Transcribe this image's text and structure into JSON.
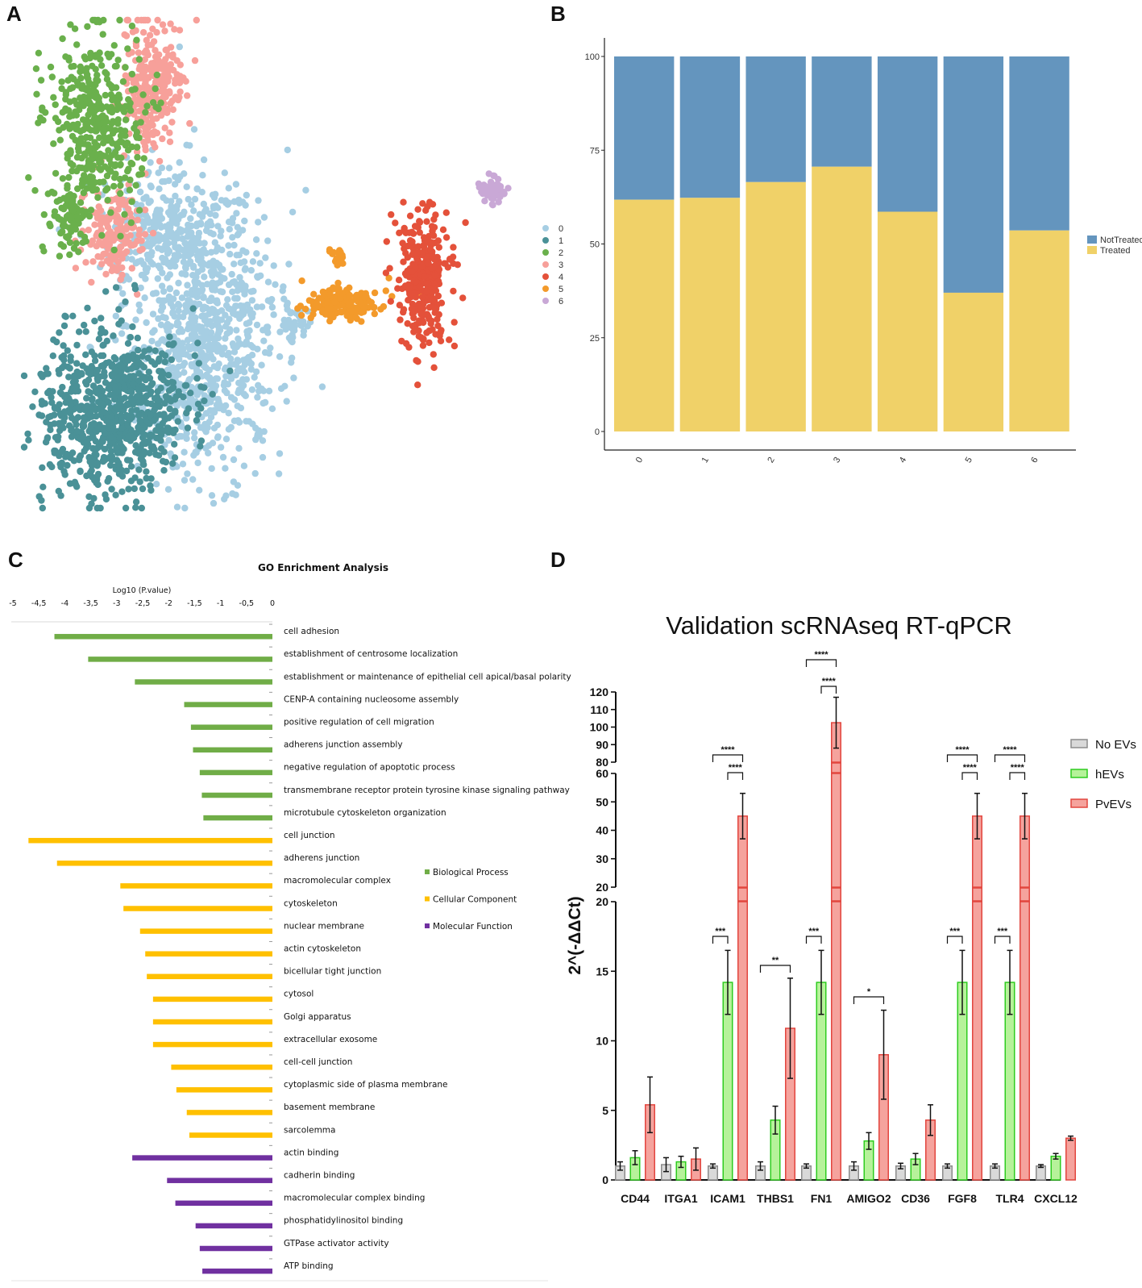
{
  "panels": {
    "a": {
      "label": "A"
    },
    "b": {
      "label": "B"
    },
    "c": {
      "label": "C"
    },
    "d": {
      "label": "D"
    }
  },
  "chart_data": [
    {
      "panel": "A",
      "type": "scatter",
      "title": "",
      "legend": [
        "0",
        "1",
        "2",
        "3",
        "4",
        "5",
        "6"
      ],
      "colors": [
        "#a6cee3",
        "#4a9197",
        "#6ab04c",
        "#f7a09a",
        "#e4513a",
        "#f39a2b",
        "#c9a8d6"
      ],
      "note": "UMAP of 7 clusters"
    },
    {
      "panel": "B",
      "type": "bar",
      "stacked": true,
      "categories": [
        "0",
        "1",
        "2",
        "3",
        "4",
        "5",
        "6"
      ],
      "series": [
        {
          "name": "Treated",
          "color": "#f0d168",
          "values": [
            61.8,
            62.3,
            66.5,
            70.6,
            58.6,
            37.0,
            53.6
          ]
        },
        {
          "name": "NotTreated",
          "color": "#6495be",
          "values": [
            38.2,
            37.7,
            33.5,
            29.4,
            41.4,
            63.0,
            46.4
          ]
        }
      ],
      "yticks": [
        "0",
        "25",
        "50",
        "75",
        "100"
      ],
      "ylim": [
        0,
        100
      ],
      "legend_labels": [
        "NotTreated",
        "Treated"
      ]
    },
    {
      "panel": "C",
      "type": "bar",
      "orientation": "horizontal",
      "title": "GO Enrichment Analysis",
      "xlabel": "Log10 (P.value)",
      "xticks": [
        "-5",
        "-4,5",
        "-4",
        "-3,5",
        "-3",
        "-2,5",
        "-2",
        "-1,5",
        "-1",
        "-0,5",
        "0"
      ],
      "xlim": [
        -5,
        0
      ],
      "legend": [
        {
          "name": "Biological Process",
          "color": "#70ad47"
        },
        {
          "name": "Cellular Component",
          "color": "#ffc000"
        },
        {
          "name": "Molecular Function",
          "color": "#7030a0"
        }
      ],
      "terms": [
        {
          "term": "cell adhesion",
          "value": -4.2,
          "group": 0
        },
        {
          "term": "establishment of centrosome localization",
          "value": -3.55,
          "group": 0
        },
        {
          "term": "establishment or maintenance of epithelial cell apical/basal polarity",
          "value": -2.65,
          "group": 0
        },
        {
          "term": "CENP-A containing nucleosome assembly",
          "value": -1.7,
          "group": 0
        },
        {
          "term": "positive regulation of cell migration",
          "value": -1.57,
          "group": 0
        },
        {
          "term": "adherens junction assembly",
          "value": -1.53,
          "group": 0
        },
        {
          "term": "negative regulation of apoptotic process",
          "value": -1.4,
          "group": 0
        },
        {
          "term": "transmembrane receptor protein tyrosine kinase signaling pathway",
          "value": -1.36,
          "group": 0
        },
        {
          "term": "microtubule cytoskeleton organization",
          "value": -1.33,
          "group": 0
        },
        {
          "term": "cell junction",
          "value": -4.7,
          "group": 1
        },
        {
          "term": "adherens junction",
          "value": -4.15,
          "group": 1
        },
        {
          "term": "macromolecular complex",
          "value": -2.93,
          "group": 1
        },
        {
          "term": "cytoskeleton",
          "value": -2.87,
          "group": 1
        },
        {
          "term": "nuclear membrane",
          "value": -2.55,
          "group": 1
        },
        {
          "term": "actin cytoskeleton",
          "value": -2.45,
          "group": 1
        },
        {
          "term": "bicellular tight junction",
          "value": -2.42,
          "group": 1
        },
        {
          "term": "cytosol",
          "value": -2.3,
          "group": 1
        },
        {
          "term": "Golgi apparatus",
          "value": -2.3,
          "group": 1
        },
        {
          "term": "extracellular exosome",
          "value": -2.3,
          "group": 1
        },
        {
          "term": "cell-cell junction",
          "value": -1.95,
          "group": 1
        },
        {
          "term": "cytoplasmic side of plasma membrane",
          "value": -1.85,
          "group": 1
        },
        {
          "term": "basement membrane",
          "value": -1.65,
          "group": 1
        },
        {
          "term": "sarcolemma",
          "value": -1.6,
          "group": 1
        },
        {
          "term": "actin binding",
          "value": -2.7,
          "group": 2
        },
        {
          "term": "cadherin binding",
          "value": -2.03,
          "group": 2
        },
        {
          "term": "macromolecular complex binding",
          "value": -1.87,
          "group": 2
        },
        {
          "term": "phosphatidylinositol binding",
          "value": -1.48,
          "group": 2
        },
        {
          "term": "GTPase activator activity",
          "value": -1.4,
          "group": 2
        },
        {
          "term": "ATP binding",
          "value": -1.35,
          "group": 2
        }
      ]
    },
    {
      "panel": "D",
      "type": "bar",
      "title": "Validation scRNAseq RT-qPCR",
      "ylabel": "2^(-ΔΔCt)",
      "y_segments": [
        {
          "range": [
            0,
            20
          ],
          "ticks": [
            "0",
            "5",
            "10",
            "15",
            "20"
          ]
        },
        {
          "range": [
            20,
            60
          ],
          "ticks": [
            "20",
            "30",
            "40",
            "50",
            "60"
          ]
        },
        {
          "range": [
            80,
            120
          ],
          "ticks": [
            "80",
            "90",
            "100",
            "110",
            "120"
          ]
        }
      ],
      "categories": [
        "CD44",
        "ITGA1",
        "ICAM1",
        "THBS1",
        "FN1",
        "AMIGO2",
        "CD36",
        "FGF8",
        "TLR4",
        "CXCL12"
      ],
      "series": [
        {
          "name": "No EVs",
          "fill": "#d9d9d9",
          "stroke": "#8c8c8c",
          "values": [
            1.0,
            1.1,
            1.0,
            1.0,
            1.0,
            1.0,
            1.0,
            1.0,
            1.0,
            1.0
          ],
          "errors": [
            0.3,
            0.5,
            0.15,
            0.3,
            0.15,
            0.3,
            0.2,
            0.15,
            0.15,
            0.1
          ]
        },
        {
          "name": "hEVs",
          "fill": "#b6f29a",
          "stroke": "#2ecc1f",
          "values": [
            1.6,
            1.3,
            14.2,
            4.3,
            14.2,
            2.8,
            1.5,
            14.2,
            14.2,
            1.7
          ],
          "errors": [
            0.5,
            0.4,
            2.3,
            1.0,
            2.3,
            0.6,
            0.4,
            2.3,
            2.3,
            0.2
          ]
        },
        {
          "name": "PvEVs",
          "fill": "#f5a39d",
          "stroke": "#e2463f",
          "values": [
            5.4,
            1.5,
            45,
            10.9,
            102.5,
            9.0,
            4.3,
            45,
            45,
            3.0
          ],
          "errors": [
            2.0,
            0.8,
            8,
            3.6,
            14.5,
            3.2,
            1.1,
            8,
            8,
            0.15
          ]
        }
      ],
      "significance": [
        {
          "category": "ICAM1",
          "pair": [
            "No EVs",
            "hEVs"
          ],
          "label": "***"
        },
        {
          "category": "ICAM1",
          "pair": [
            "hEVs",
            "PvEVs"
          ],
          "label": "****"
        },
        {
          "category": "ICAM1",
          "pair": [
            "No EVs",
            "PvEVs"
          ],
          "label": "****"
        },
        {
          "category": "THBS1",
          "pair": [
            "No EVs",
            "PvEVs"
          ],
          "label": "**"
        },
        {
          "category": "FN1",
          "pair": [
            "No EVs",
            "hEVs"
          ],
          "label": "***"
        },
        {
          "category": "FN1",
          "pair": [
            "hEVs",
            "PvEVs"
          ],
          "label": "****"
        },
        {
          "category": "FN1",
          "pair": [
            "No EVs",
            "PvEVs"
          ],
          "label": "****"
        },
        {
          "category": "AMIGO2",
          "pair": [
            "No EVs",
            "PvEVs"
          ],
          "label": "*"
        },
        {
          "category": "FGF8",
          "pair": [
            "No EVs",
            "hEVs"
          ],
          "label": "***"
        },
        {
          "category": "FGF8",
          "pair": [
            "hEVs",
            "PvEVs"
          ],
          "label": "****"
        },
        {
          "category": "FGF8",
          "pair": [
            "No EVs",
            "PvEVs"
          ],
          "label": "****"
        },
        {
          "category": "TLR4",
          "pair": [
            "No EVs",
            "hEVs"
          ],
          "label": "***"
        },
        {
          "category": "TLR4",
          "pair": [
            "hEVs",
            "PvEVs"
          ],
          "label": "****"
        },
        {
          "category": "TLR4",
          "pair": [
            "No EVs",
            "PvEVs"
          ],
          "label": "****"
        }
      ]
    }
  ]
}
